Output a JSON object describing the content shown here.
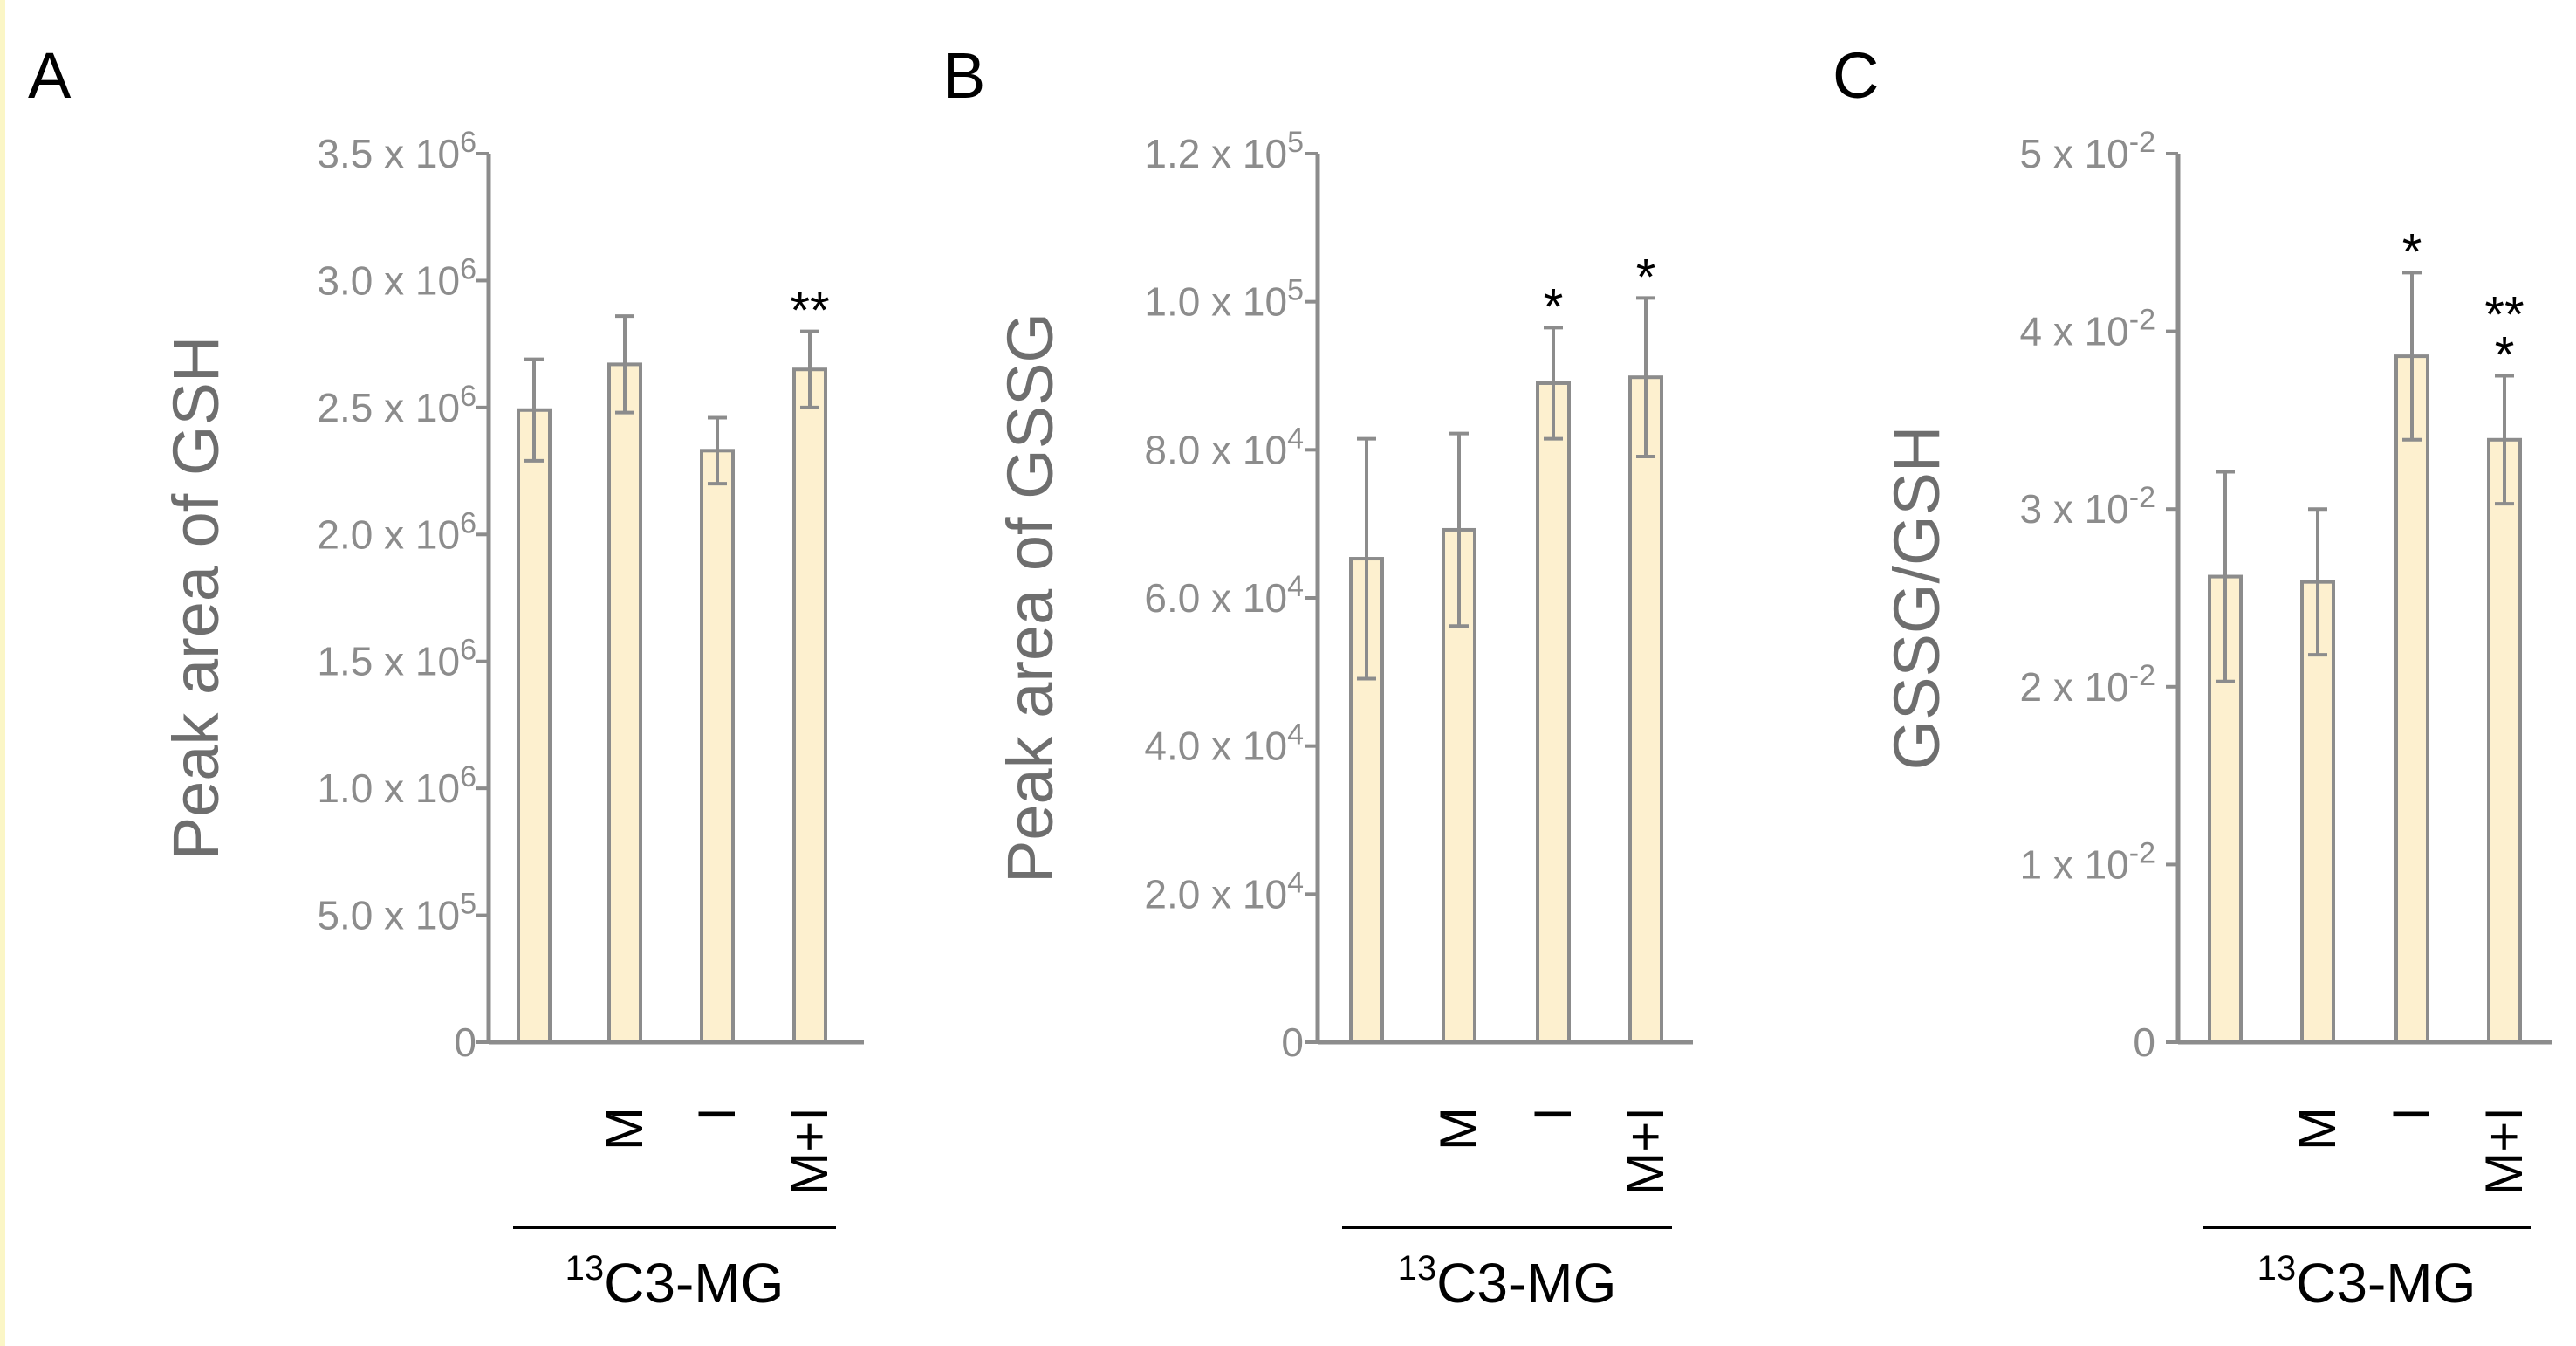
{
  "colors": {
    "bar_fill": "#fdf0cf",
    "bar_stroke": "#8c8c8c",
    "axis": "#8c8c8c",
    "tick_text": "#8c8c8c",
    "ylabel_text": "#6e6e6e",
    "panel_letter": "#000000",
    "star": "#000000",
    "group_text": "#000000"
  },
  "chart_data": [
    {
      "panel": "A",
      "type": "bar",
      "title": "",
      "ylabel": "Peak area of GSH",
      "ylim": [
        0,
        3500000
      ],
      "yticks": [
        {
          "value": 0,
          "label": "0"
        },
        {
          "value": 500000,
          "label": "5.0 x 10",
          "exp": "5"
        },
        {
          "value": 1000000,
          "label": "1.0 x 10",
          "exp": "6"
        },
        {
          "value": 1500000,
          "label": "1.5 x 10",
          "exp": "6"
        },
        {
          "value": 2000000,
          "label": "2.0 x 10",
          "exp": "6"
        },
        {
          "value": 2500000,
          "label": "2.5 x 10",
          "exp": "6"
        },
        {
          "value": 3000000,
          "label": "3.0 x 10",
          "exp": "6"
        },
        {
          "value": 3500000,
          "label": "3.5 x 10",
          "exp": "6"
        }
      ],
      "categories": [
        "",
        "M",
        "I",
        "M+I"
      ],
      "values": [
        2490000,
        2670000,
        2330000,
        2650000
      ],
      "errors": [
        200000,
        190000,
        130000,
        150000
      ],
      "significance": [
        "",
        "",
        "",
        "**"
      ],
      "group_label": "C3-MG",
      "group_label_sup": "13"
    },
    {
      "panel": "B",
      "type": "bar",
      "title": "",
      "ylabel": "Peak area of GSSG",
      "ylim": [
        0,
        120000
      ],
      "yticks": [
        {
          "value": 0,
          "label": "0"
        },
        {
          "value": 20000,
          "label": "2.0 x 10",
          "exp": "4"
        },
        {
          "value": 40000,
          "label": "4.0 x 10",
          "exp": "4"
        },
        {
          "value": 60000,
          "label": "6.0 x 10",
          "exp": "4"
        },
        {
          "value": 80000,
          "label": "8.0 x 10",
          "exp": "4"
        },
        {
          "value": 100000,
          "label": "1.0 x 10",
          "exp": "5"
        },
        {
          "value": 120000,
          "label": "1.2 x 10",
          "exp": "5"
        }
      ],
      "categories": [
        "",
        "M",
        "I",
        "M+I"
      ],
      "values": [
        65300,
        69200,
        89000,
        89800
      ],
      "errors": [
        16200,
        13000,
        7500,
        10700
      ],
      "significance": [
        "",
        "",
        "*",
        "*"
      ],
      "group_label": "C3-MG",
      "group_label_sup": "13"
    },
    {
      "panel": "C",
      "type": "bar",
      "title": "",
      "ylabel": "GSSG/GSH",
      "ylim": [
        0,
        0.05
      ],
      "yticks": [
        {
          "value": 0,
          "label": "0"
        },
        {
          "value": 0.01,
          "label": "1 x 10",
          "exp": "-2"
        },
        {
          "value": 0.02,
          "label": "2 x 10",
          "exp": "-2"
        },
        {
          "value": 0.03,
          "label": "3 x 10",
          "exp": "-2"
        },
        {
          "value": 0.04,
          "label": "4 x 10",
          "exp": "-2"
        },
        {
          "value": 0.05,
          "label": "5 x 10",
          "exp": "-2"
        }
      ],
      "categories": [
        "",
        "M",
        "I",
        "M+I"
      ],
      "values": [
        0.0262,
        0.0259,
        0.0386,
        0.0339
      ],
      "errors": [
        0.0059,
        0.0041,
        0.0047,
        0.0036
      ],
      "significance": [
        "",
        "",
        "*",
        "**\n*"
      ],
      "group_label": "C3-MG",
      "group_label_sup": "13"
    }
  ]
}
